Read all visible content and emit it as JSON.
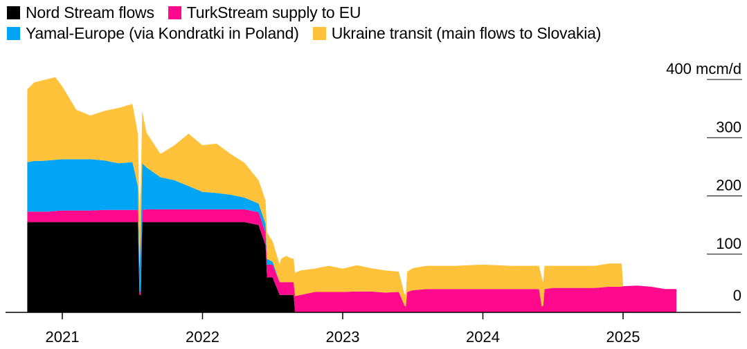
{
  "legend": {
    "items": [
      {
        "label": "Nord Stream flows",
        "color": "#000000"
      },
      {
        "label": "TurkStream supply to EU",
        "color": "#ff0a8c"
      },
      {
        "label": "Yamal-Europe (via Kondratki in Poland)",
        "color": "#00a6f5"
      },
      {
        "label": "Ukraine transit (main flows to Slovakia)",
        "color": "#ffc23a"
      }
    ]
  },
  "chart_data": {
    "type": "area",
    "stacked": true,
    "unit": "mcm/d",
    "y_ticks": [
      "0",
      "100",
      "200",
      "300",
      "400 mcm/d"
    ],
    "y_tick_values": [
      0,
      100,
      200,
      300,
      400
    ],
    "ylim": [
      0,
      400
    ],
    "x_ticks": [
      "2021",
      "2022",
      "2023",
      "2024",
      "2025"
    ],
    "x_tick_values": [
      2021.0,
      2022.0,
      2023.0,
      2024.0,
      2025.0
    ],
    "xlim": [
      2020.75,
      2025.8
    ],
    "grid": false,
    "legend_position": "top-left",
    "x": [
      2020.75,
      2020.8,
      2020.85,
      2020.9,
      2020.95,
      2021.0,
      2021.1,
      2021.2,
      2021.3,
      2021.4,
      2021.5,
      2021.54,
      2021.55,
      2021.56,
      2021.57,
      2021.6,
      2021.7,
      2021.8,
      2021.9,
      2022.0,
      2022.1,
      2022.2,
      2022.3,
      2022.4,
      2022.45,
      2022.46,
      2022.5,
      2022.55,
      2022.56,
      2022.6,
      2022.62,
      2022.65,
      2022.66,
      2022.7,
      2022.8,
      2022.9,
      2023.0,
      2023.1,
      2023.2,
      2023.3,
      2023.4,
      2023.44,
      2023.45,
      2023.46,
      2023.5,
      2023.6,
      2023.8,
      2024.0,
      2024.2,
      2024.4,
      2024.42,
      2024.43,
      2024.44,
      2024.5,
      2024.6,
      2024.7,
      2024.8,
      2024.9,
      2024.99,
      2025.0,
      2025.1,
      2025.2,
      2025.3,
      2025.38
    ],
    "series": [
      {
        "name": "Nord Stream flows",
        "values": [
          155,
          155,
          155,
          155,
          155,
          155,
          155,
          155,
          155,
          155,
          155,
          155,
          30,
          30,
          155,
          155,
          155,
          155,
          155,
          155,
          155,
          155,
          155,
          150,
          115,
          60,
          60,
          30,
          30,
          30,
          30,
          30,
          0,
          0,
          0,
          0,
          0,
          0,
          0,
          0,
          0,
          0,
          0,
          0,
          0,
          0,
          0,
          0,
          0,
          0,
          0,
          0,
          0,
          0,
          0,
          0,
          0,
          0,
          0,
          0,
          0,
          0,
          0,
          0
        ]
      },
      {
        "name": "TurkStream supply to EU",
        "values": [
          18,
          18,
          18,
          18,
          19,
          20,
          20,
          20,
          21,
          21,
          21,
          21,
          5,
          5,
          21,
          22,
          22,
          22,
          22,
          22,
          22,
          22,
          22,
          22,
          22,
          22,
          22,
          22,
          22,
          22,
          22,
          22,
          28,
          30,
          35,
          35,
          35,
          36,
          36,
          34,
          35,
          12,
          10,
          35,
          38,
          40,
          40,
          40,
          40,
          40,
          10,
          12,
          40,
          42,
          42,
          42,
          42,
          44,
          44,
          45,
          46,
          44,
          40,
          40
        ]
      },
      {
        "name": "Yamal-Europe (via Kondratki in Poland)",
        "values": [
          85,
          87,
          87,
          88,
          88,
          88,
          88,
          88,
          85,
          80,
          82,
          40,
          40,
          100,
          80,
          72,
          55,
          50,
          40,
          30,
          28,
          25,
          20,
          15,
          15,
          10,
          5,
          0,
          0,
          0,
          0,
          0,
          0,
          0,
          0,
          0,
          0,
          0,
          0,
          0,
          0,
          0,
          0,
          0,
          0,
          0,
          0,
          0,
          0,
          0,
          0,
          0,
          0,
          0,
          0,
          0,
          0,
          0,
          0,
          0,
          0,
          0,
          0,
          0
        ]
      },
      {
        "name": "Ukraine transit (main flows to Slovakia)",
        "values": [
          125,
          135,
          138,
          140,
          142,
          125,
          85,
          75,
          85,
          95,
          100,
          90,
          90,
          90,
          90,
          60,
          40,
          60,
          90,
          80,
          85,
          70,
          60,
          40,
          40,
          45,
          35,
          30,
          40,
          45,
          42,
          40,
          40,
          42,
          40,
          45,
          40,
          45,
          40,
          38,
          35,
          20,
          20,
          35,
          38,
          40,
          40,
          42,
          40,
          40,
          50,
          40,
          40,
          38,
          38,
          38,
          38,
          40,
          40,
          0,
          0,
          0,
          0,
          0
        ]
      }
    ]
  }
}
